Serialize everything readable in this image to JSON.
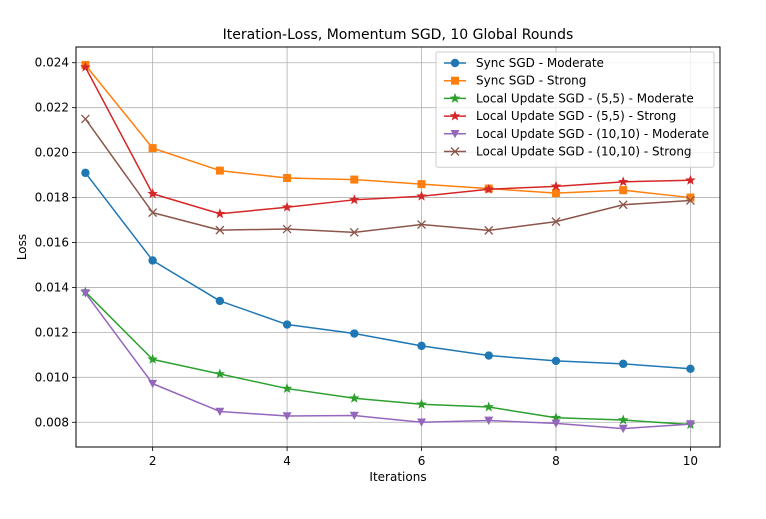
{
  "chart_data": {
    "type": "line",
    "title": "Iteration-Loss, Momentum SGD, 10 Global Rounds",
    "xlabel": "Iterations",
    "ylabel": "Loss",
    "x": [
      1,
      2,
      3,
      4,
      5,
      6,
      7,
      8,
      9,
      10
    ],
    "xlim": [
      0.86,
      10.44
    ],
    "ylim": [
      0.0069,
      0.0247
    ],
    "xticks": [
      2,
      4,
      6,
      8,
      10
    ],
    "xtick_labels": [
      "2",
      "4",
      "6",
      "8",
      "10"
    ],
    "yticks": [
      0.008,
      0.01,
      0.012,
      0.014,
      0.016,
      0.018,
      0.02,
      0.022,
      0.024
    ],
    "ytick_labels": [
      "0.008",
      "0.010",
      "0.012",
      "0.014",
      "0.016",
      "0.018",
      "0.020",
      "0.022",
      "0.024"
    ],
    "grid": true,
    "legend_position": "top-right",
    "series": [
      {
        "name": "Sync SGD - Moderate",
        "color": "#1f77b4",
        "marker": "circle",
        "values": [
          0.0191,
          0.0152,
          0.0134,
          0.01235,
          0.01195,
          0.0114,
          0.01097,
          0.01073,
          0.0106,
          0.01038
        ]
      },
      {
        "name": "Sync SGD - Strong",
        "color": "#ff7f0e",
        "marker": "square",
        "values": [
          0.0239,
          0.0202,
          0.0192,
          0.01887,
          0.0188,
          0.0186,
          0.0184,
          0.0182,
          0.01833,
          0.018
        ]
      },
      {
        "name": "Local Update SGD - (5,5) - Moderate",
        "color": "#2ca02c",
        "marker": "star",
        "values": [
          0.0138,
          0.0108,
          0.01015,
          0.0095,
          0.00907,
          0.0088,
          0.00868,
          0.0082,
          0.0081,
          0.0079
        ]
      },
      {
        "name": "Local Update SGD - (5,5) - Strong",
        "color": "#d62728",
        "marker": "star",
        "values": [
          0.0238,
          0.01817,
          0.01728,
          0.01757,
          0.0179,
          0.01806,
          0.01837,
          0.0185,
          0.0187,
          0.01877
        ]
      },
      {
        "name": "Local Update SGD - (10,10) - Moderate",
        "color": "#9467bd",
        "marker": "triangle-down",
        "values": [
          0.01375,
          0.00972,
          0.00848,
          0.00828,
          0.0083,
          0.008,
          0.00808,
          0.00795,
          0.00772,
          0.00792
        ]
      },
      {
        "name": "Local Update SGD - (10,10) - Strong",
        "color": "#8c564b",
        "marker": "x",
        "values": [
          0.0215,
          0.01733,
          0.01655,
          0.0166,
          0.01645,
          0.0168,
          0.01654,
          0.01693,
          0.01768,
          0.01787
        ]
      }
    ]
  }
}
